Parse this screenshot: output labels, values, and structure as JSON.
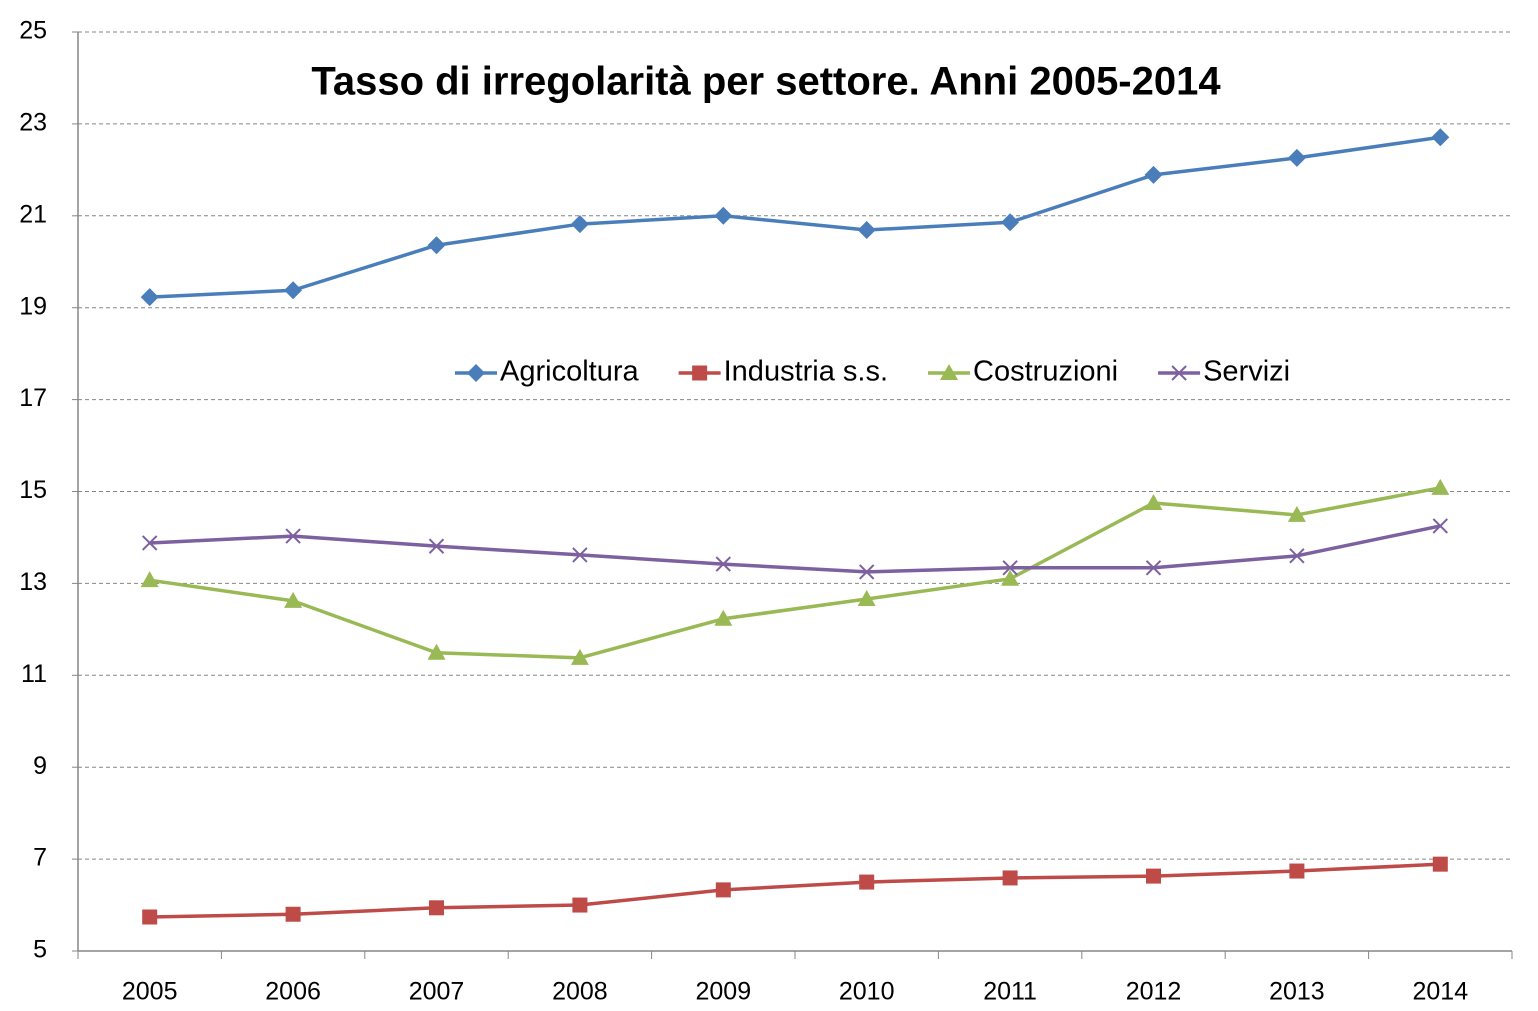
{
  "chart_data": {
    "type": "line",
    "title": "Tasso di irregolarità per settore. Anni 2005-2014",
    "categories": [
      "2005",
      "2006",
      "2007",
      "2008",
      "2009",
      "2010",
      "2011",
      "2012",
      "2013",
      "2014"
    ],
    "series": [
      {
        "name": "Agricoltura",
        "color": "#4a7ebb",
        "marker": "diamond",
        "values": [
          19.23,
          19.38,
          20.36,
          20.82,
          21.0,
          20.69,
          20.86,
          21.89,
          22.26,
          22.71
        ]
      },
      {
        "name": "Industria s.s.",
        "color": "#be4b48",
        "marker": "square",
        "values": [
          5.74,
          5.8,
          5.94,
          6.0,
          6.33,
          6.5,
          6.59,
          6.63,
          6.74,
          6.89
        ]
      },
      {
        "name": "Costruzioni",
        "color": "#98b954",
        "marker": "triangle",
        "values": [
          13.07,
          12.62,
          11.49,
          11.38,
          12.23,
          12.66,
          13.1,
          14.75,
          14.49,
          15.08
        ]
      },
      {
        "name": "Servizi",
        "color": "#7d60a0",
        "marker": "x",
        "values": [
          13.88,
          14.03,
          13.81,
          13.62,
          13.42,
          13.25,
          13.34,
          13.34,
          13.6,
          14.25
        ]
      }
    ],
    "ylim": [
      5,
      25
    ],
    "yticks": [
      5,
      7,
      9,
      11,
      13,
      15,
      17,
      19,
      21,
      23,
      25
    ],
    "grid": true,
    "legend": "top"
  }
}
